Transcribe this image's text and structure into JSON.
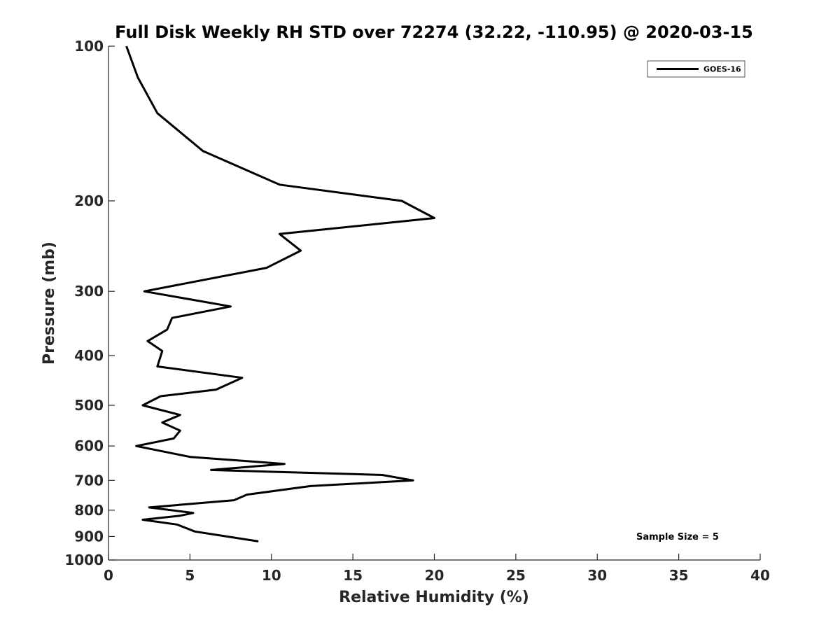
{
  "chart_data": {
    "type": "line",
    "title": "Full Disk Weekly RH STD over 72274 (32.22, -110.95) @ 2020-03-15",
    "xlabel": "Relative Humidity (%)",
    "ylabel": "Pressure (mb)",
    "xlim": [
      0,
      40
    ],
    "ylim": [
      100,
      1000
    ],
    "y_scale": "log",
    "y_reversed": true,
    "x_ticks": [
      "0",
      "5",
      "10",
      "15",
      "20",
      "25",
      "30",
      "35",
      "40"
    ],
    "y_ticks": [
      "100",
      "200",
      "300",
      "400",
      "500",
      "600",
      "700",
      "800",
      "900",
      "1000"
    ],
    "grid": false,
    "legend_position": "top-right",
    "annotation": "Sample Size = 5",
    "series": [
      {
        "name": "GOES-16",
        "color": "#000000",
        "points": [
          [
            1.1,
            100
          ],
          [
            1.8,
            115
          ],
          [
            3.0,
            135
          ],
          [
            5.8,
            160
          ],
          [
            10.5,
            186
          ],
          [
            18.0,
            200
          ],
          [
            20.0,
            216
          ],
          [
            10.5,
            232
          ],
          [
            11.8,
            250
          ],
          [
            9.7,
            270
          ],
          [
            2.2,
            300
          ],
          [
            7.5,
            321
          ],
          [
            3.9,
            338
          ],
          [
            3.6,
            356
          ],
          [
            2.4,
            375
          ],
          [
            3.3,
            392
          ],
          [
            3.0,
            420
          ],
          [
            8.2,
            442
          ],
          [
            6.6,
            466
          ],
          [
            3.2,
            480
          ],
          [
            2.1,
            500
          ],
          [
            4.4,
            522
          ],
          [
            3.3,
            540
          ],
          [
            4.4,
            560
          ],
          [
            4.0,
            580
          ],
          [
            1.7,
            600
          ],
          [
            5.0,
            630
          ],
          [
            10.8,
            650
          ],
          [
            6.3,
            668
          ],
          [
            16.8,
            683
          ],
          [
            18.7,
            700
          ],
          [
            12.4,
            718
          ],
          [
            8.5,
            746
          ],
          [
            7.7,
            765
          ],
          [
            2.5,
            790
          ],
          [
            5.2,
            810
          ],
          [
            4.4,
            820
          ],
          [
            2.1,
            835
          ],
          [
            4.2,
            853
          ],
          [
            5.3,
            880
          ],
          [
            9.2,
            920
          ]
        ]
      }
    ]
  }
}
